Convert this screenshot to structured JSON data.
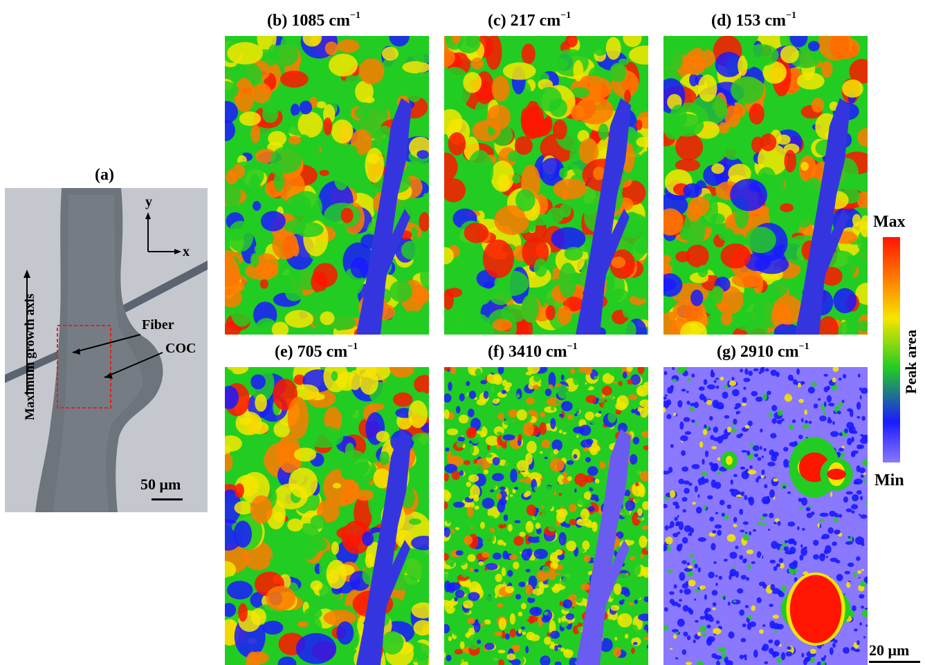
{
  "panel_a": {
    "label": "(a)",
    "fiber_label": "Fiber",
    "coc_label": "COC",
    "growth_axis_label": "Maximum growth axis",
    "axis_y": "y",
    "axis_x": "x",
    "scale_label": "50 μm"
  },
  "maps": [
    {
      "id": "b",
      "label_main": "(b) 1085 cm",
      "label_sup": "−1"
    },
    {
      "id": "c",
      "label_main": "(c) 217 cm",
      "label_sup": "−1"
    },
    {
      "id": "d",
      "label_main": "(d) 153 cm",
      "label_sup": "−1"
    },
    {
      "id": "e",
      "label_main": "(e) 705 cm",
      "label_sup": "−1"
    },
    {
      "id": "f",
      "label_main": "(f) 3410 cm",
      "label_sup": "−1"
    },
    {
      "id": "g",
      "label_main": "(g) 2910 cm",
      "label_sup": "−1"
    }
  ],
  "colorbar": {
    "max_label": "Max",
    "min_label": "Min",
    "axis_label": "Peak area",
    "colors": [
      "#ff1500",
      "#ff7a00",
      "#f5e600",
      "#22cc22",
      "#1a1aff",
      "#8a78ff"
    ]
  },
  "map_scale_label": "20 μm"
}
